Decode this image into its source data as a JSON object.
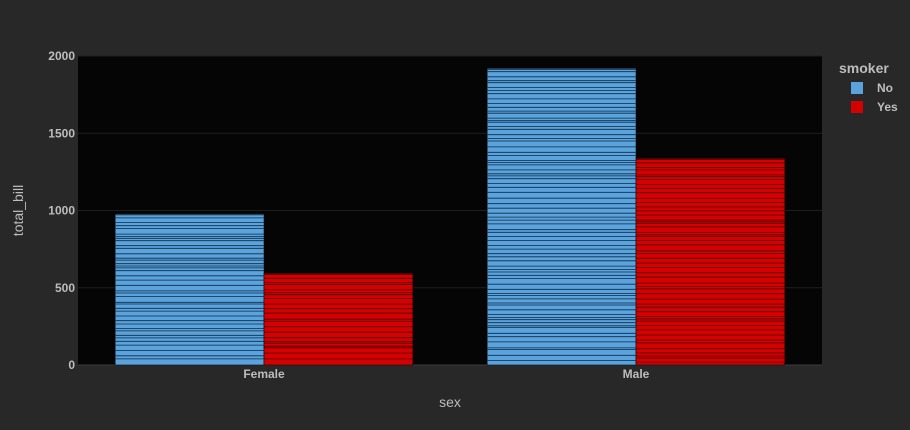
{
  "chart_data": {
    "type": "bar",
    "barmode": "group",
    "categories": [
      "Female",
      "Male"
    ],
    "series": [
      {
        "name": "No",
        "color": "#5aa3dc",
        "values": [
          977.68,
          1919.75
        ]
      },
      {
        "name": "Yes",
        "color": "#d50000",
        "values": [
          593.27,
          1337.07
        ]
      }
    ],
    "xlabel": "sex",
    "ylabel": "total_bill",
    "ylim": [
      0,
      2000
    ],
    "yticks": [
      0,
      500,
      1000,
      1500,
      2000
    ],
    "legend": {
      "title": "smoker",
      "placement": "top-right"
    },
    "grid": true,
    "plot_background": "#050505",
    "paper_background": "#282828"
  }
}
